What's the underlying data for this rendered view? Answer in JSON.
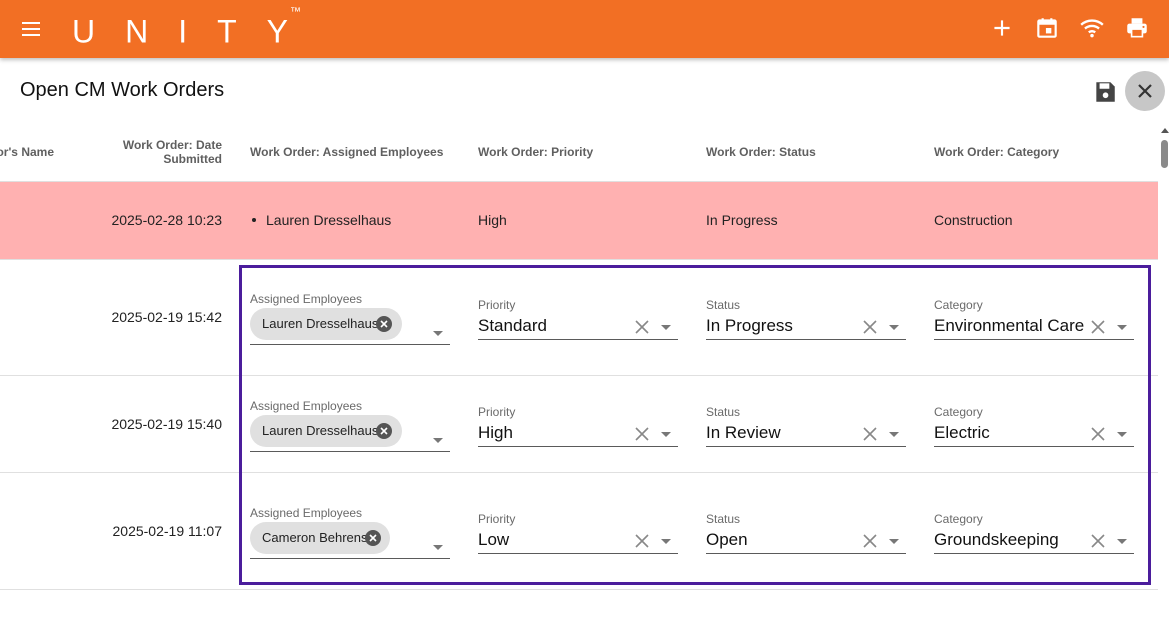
{
  "app": {
    "logo_text": "UNITY",
    "logo_tm": "™"
  },
  "toolbar_icons": [
    "add-icon",
    "calendar-icon",
    "wifi-icon",
    "print-icon"
  ],
  "page": {
    "title": "Open CM Work Orders"
  },
  "table": {
    "headers": {
      "name": "or's Name",
      "date": "Work Order: Date Submitted",
      "employees": "Work Order: Assigned Employees",
      "priority": "Work Order: Priority",
      "status": "Work Order: Status",
      "category": "Work Order: Category"
    },
    "rows": [
      {
        "date": "2025-02-28 10:23",
        "employees": [
          "Lauren Dresselhaus"
        ],
        "priority": "High",
        "status": "In Progress",
        "category": "Construction"
      }
    ],
    "edit_rows": [
      {
        "date": "2025-02-19 15:42",
        "employees_label": "Assigned Employees",
        "employee_chip": "Lauren Dresselhaus",
        "priority_label": "Priority",
        "priority": "Standard",
        "status_label": "Status",
        "status": "In Progress",
        "category_label": "Category",
        "category": "Environmental Care"
      },
      {
        "date": "2025-02-19 15:40",
        "employees_label": "Assigned Employees",
        "employee_chip": "Lauren Dresselhaus",
        "priority_label": "Priority",
        "priority": "High",
        "status_label": "Status",
        "status": "In Review",
        "category_label": "Category",
        "category": "Electric"
      },
      {
        "date": "2025-02-19 11:07",
        "employees_label": "Assigned Employees",
        "employee_chip": "Cameron Behrens",
        "priority_label": "Priority",
        "priority": "Low",
        "status_label": "Status",
        "status": "Open",
        "category_label": "Category",
        "category": "Groundskeeping"
      }
    ]
  },
  "colors": {
    "appbar": "#f26f24",
    "highlight_row": "#ffb1b1",
    "selection_border": "#4b1d9c"
  }
}
